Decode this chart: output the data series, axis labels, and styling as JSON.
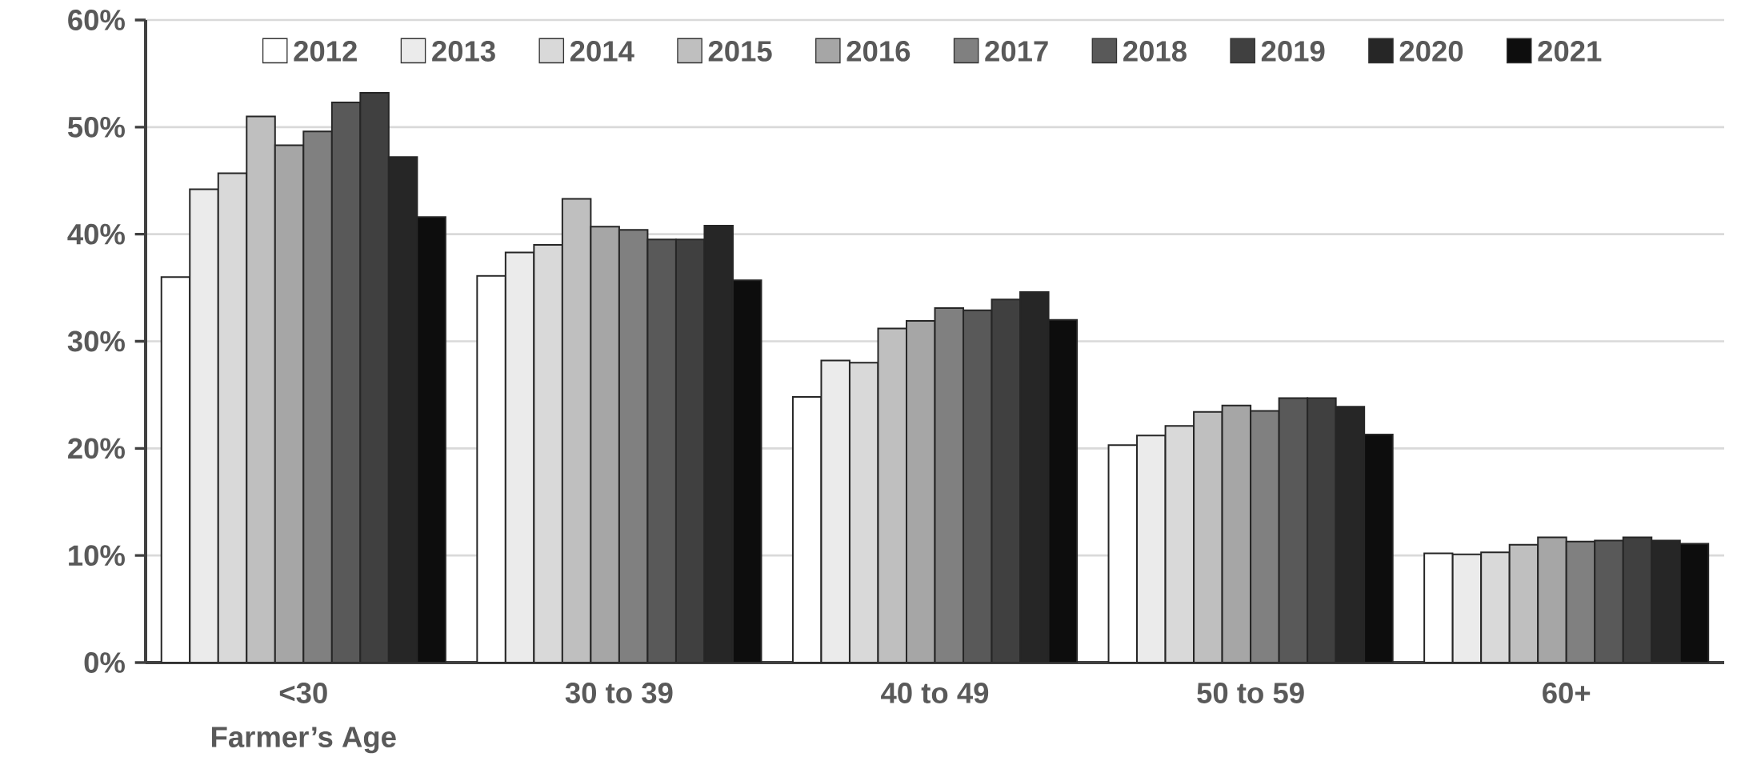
{
  "chart_data": {
    "type": "bar",
    "xlabel": "Farmer’s Age",
    "categories": [
      "<30",
      "30 to 39",
      "40 to 49",
      "50 to 59",
      "60+"
    ],
    "series": [
      {
        "name": "2012",
        "color": "#ffffff",
        "values": [
          36.0,
          36.1,
          24.8,
          20.3,
          10.2
        ]
      },
      {
        "name": "2013",
        "color": "#ebebeb",
        "values": [
          44.2,
          38.3,
          28.2,
          21.2,
          10.1
        ]
      },
      {
        "name": "2014",
        "color": "#d9d9d9",
        "values": [
          45.7,
          39.0,
          28.0,
          22.1,
          10.3
        ]
      },
      {
        "name": "2015",
        "color": "#bfbfbf",
        "values": [
          51.0,
          43.3,
          31.2,
          23.4,
          11.0
        ]
      },
      {
        "name": "2016",
        "color": "#a6a6a6",
        "values": [
          48.3,
          40.7,
          31.9,
          24.0,
          11.7
        ]
      },
      {
        "name": "2017",
        "color": "#808080",
        "values": [
          49.6,
          40.4,
          33.1,
          23.5,
          11.3
        ]
      },
      {
        "name": "2018",
        "color": "#595959",
        "values": [
          52.3,
          39.5,
          32.9,
          24.7,
          11.4
        ]
      },
      {
        "name": "2019",
        "color": "#404040",
        "values": [
          53.2,
          39.5,
          33.9,
          24.7,
          11.7
        ]
      },
      {
        "name": "2020",
        "color": "#262626",
        "values": [
          47.2,
          40.8,
          34.6,
          23.9,
          11.4
        ]
      },
      {
        "name": "2021",
        "color": "#0d0d0d",
        "values": [
          41.6,
          35.7,
          32.0,
          21.3,
          11.1
        ]
      }
    ],
    "ylim": [
      0,
      60
    ],
    "yticks": [
      {
        "value": 0,
        "label": "0%"
      },
      {
        "value": 10,
        "label": "10%"
      },
      {
        "value": 20,
        "label": "20%"
      },
      {
        "value": 30,
        "label": "30%"
      },
      {
        "value": 40,
        "label": "40%"
      },
      {
        "value": 50,
        "label": "50%"
      },
      {
        "value": 60,
        "label": "60%"
      }
    ],
    "grid": "y",
    "legend": "top"
  }
}
